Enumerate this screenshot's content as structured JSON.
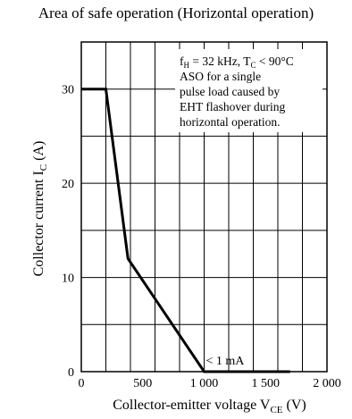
{
  "chart_data": {
    "type": "line",
    "title": "Area of safe operation (Horizontal operation)",
    "xlabel": {
      "main": "Collector-emitter voltage  V",
      "sub": "CE",
      "unit": "  (V)"
    },
    "ylabel": {
      "main": "Collector current  I",
      "sub": "C",
      "unit": "  (A)"
    },
    "xlim": [
      0,
      2000
    ],
    "ylim": [
      0,
      35
    ],
    "x_ticks": [
      {
        "value": 0,
        "label": "0"
      },
      {
        "value": 500,
        "label": "500"
      },
      {
        "value": 1000,
        "label": "1 000"
      },
      {
        "value": 1500,
        "label": "1 500"
      },
      {
        "value": 2000,
        "label": "2 000"
      }
    ],
    "y_ticks": [
      {
        "value": 0,
        "label": "0"
      },
      {
        "value": 10,
        "label": "10"
      },
      {
        "value": 20,
        "label": "20"
      },
      {
        "value": 30,
        "label": "30"
      }
    ],
    "x_grid": [
      0,
      200,
      400,
      600,
      800,
      1000,
      1200,
      1400,
      1600,
      1800,
      2000
    ],
    "y_grid": [
      0,
      5,
      10,
      15,
      20,
      25,
      30,
      35
    ],
    "grid": true,
    "series": [
      {
        "x": [
          0,
          200,
          380,
          1000,
          1700
        ],
        "y": [
          30,
          30,
          12,
          0,
          0
        ]
      }
    ],
    "annotation_box": {
      "lines": [
        {
          "segments": [
            [
              "f",
              ""
            ],
            [
              "H",
              "sub"
            ],
            [
              " = 32 kHz, T",
              ""
            ],
            [
              "C",
              "sub"
            ],
            [
              " < 90°C",
              ""
            ]
          ]
        },
        {
          "segments": [
            [
              "ASO for a single",
              ""
            ]
          ]
        },
        {
          "segments": [
            [
              "pulse load caused by",
              ""
            ]
          ]
        },
        {
          "segments": [
            [
              "EHT flashover during",
              ""
            ]
          ]
        },
        {
          "segments": [
            [
              "horizontal operation.",
              ""
            ]
          ]
        }
      ]
    },
    "annotation_leakage": {
      "text": "< 1 mA",
      "x": 1000,
      "y": 0
    }
  }
}
